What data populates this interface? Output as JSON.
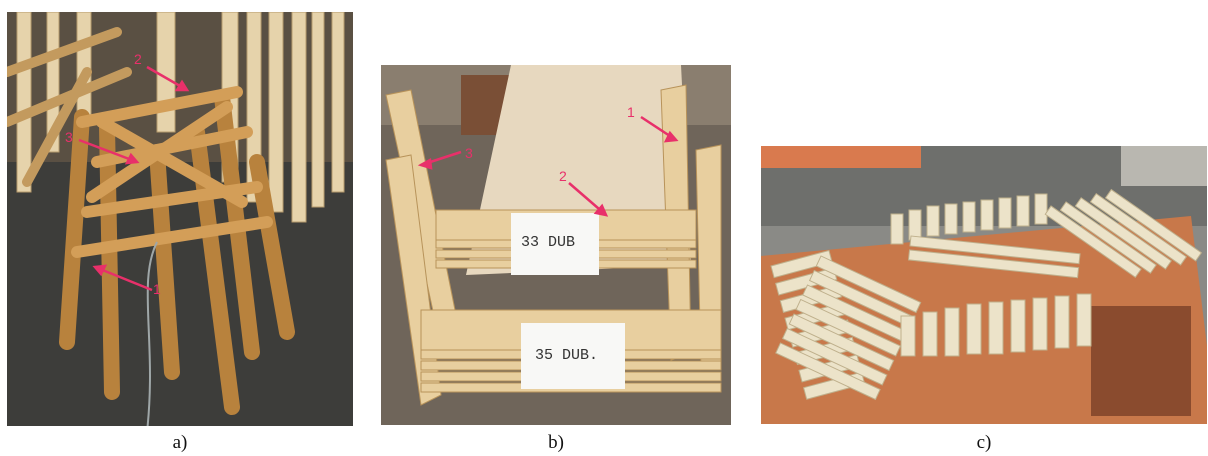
{
  "figure": {
    "panels": [
      {
        "caption": "a)",
        "description": "stacked wooden stool frames",
        "markers": [
          "1",
          "2",
          "3"
        ]
      },
      {
        "caption": "b)",
        "description": "stacked wooden frames with paper labels",
        "markers": [
          "1",
          "2",
          "3"
        ],
        "labels": [
          "33 DUB",
          "35 DUB."
        ]
      },
      {
        "caption": "c)",
        "description": "wooden leg pieces arranged on a desk"
      }
    ],
    "colors": {
      "arrow": "#e8306a",
      "wood_light": "#e8d2a6",
      "wood_mid": "#d09a5a",
      "floor": "#3b3b38"
    }
  }
}
